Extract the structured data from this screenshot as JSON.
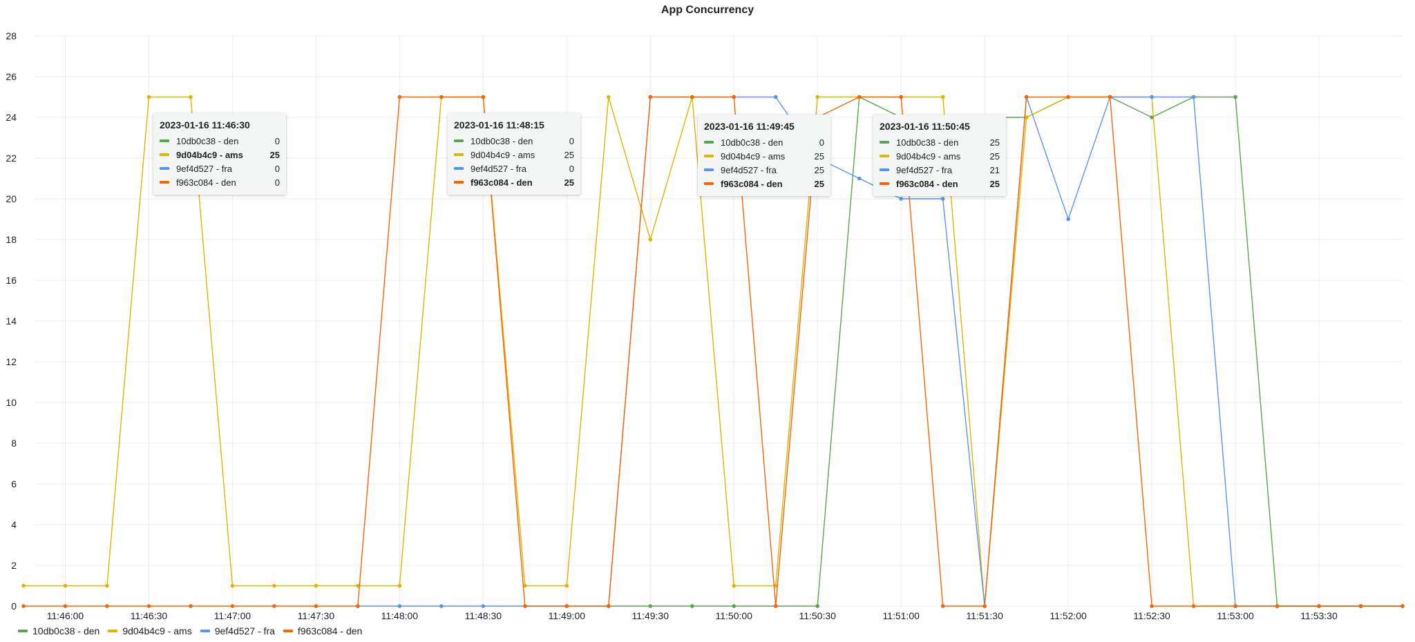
{
  "chart_data": {
    "type": "line",
    "title": "App Concurrency",
    "xlabel": "",
    "ylabel": "",
    "ylim": [
      0,
      28
    ],
    "y_ticks": [
      0,
      2,
      4,
      6,
      8,
      10,
      12,
      14,
      16,
      18,
      20,
      22,
      24,
      26,
      28
    ],
    "x_ticks": [
      "11:46:00",
      "11:46:30",
      "11:47:00",
      "11:47:30",
      "11:48:00",
      "11:48:30",
      "11:49:00",
      "11:49:30",
      "11:50:00",
      "11:50:30",
      "11:51:00",
      "11:51:30",
      "11:52:00",
      "11:52:30",
      "11:53:00",
      "11:53:30"
    ],
    "x": [
      "11:45:45",
      "11:46:00",
      "11:46:15",
      "11:46:30",
      "11:46:45",
      "11:47:00",
      "11:47:15",
      "11:47:30",
      "11:47:45",
      "11:48:00",
      "11:48:15",
      "11:48:30",
      "11:48:45",
      "11:49:00",
      "11:49:15",
      "11:49:30",
      "11:49:45",
      "11:50:00",
      "11:50:15",
      "11:50:30",
      "11:50:45",
      "11:51:00",
      "11:51:15",
      "11:51:30",
      "11:51:45",
      "11:52:00",
      "11:52:15",
      "11:52:30",
      "11:52:45",
      "11:53:00",
      "11:53:15",
      "11:53:30",
      "11:53:45",
      "11:54:00"
    ],
    "series": [
      {
        "name": "10db0c38 - den",
        "color": "#56a64b",
        "values": [
          null,
          null,
          null,
          null,
          null,
          null,
          null,
          null,
          null,
          null,
          null,
          null,
          null,
          null,
          0,
          0,
          0,
          0,
          0,
          0,
          25,
          24,
          24,
          24,
          24,
          25,
          25,
          24,
          25,
          25,
          0,
          0,
          0,
          0
        ]
      },
      {
        "name": "9d04b4c9 - ams",
        "color": "#e0b400",
        "values": [
          1,
          1,
          1,
          25,
          25,
          1,
          1,
          1,
          1,
          1,
          25,
          25,
          1,
          1,
          25,
          18,
          25,
          1,
          1,
          25,
          25,
          25,
          25,
          0,
          24,
          25,
          25,
          25,
          0,
          0,
          0,
          0,
          0,
          0
        ]
      },
      {
        "name": "9ef4d527 - fra",
        "color": "#5794f2",
        "values": [
          null,
          null,
          null,
          null,
          null,
          null,
          null,
          null,
          0,
          0,
          0,
          0,
          0,
          0,
          0,
          25,
          25,
          25,
          25,
          22,
          21,
          20,
          20,
          0,
          25,
          19,
          25,
          25,
          25,
          0,
          0,
          0,
          0,
          0
        ]
      },
      {
        "name": "f963c084 - den",
        "color": "#fa6400",
        "values": [
          0,
          0,
          0,
          0,
          0,
          0,
          0,
          0,
          0,
          25,
          25,
          25,
          0,
          0,
          0,
          25,
          25,
          25,
          0,
          24,
          25,
          25,
          0,
          0,
          25,
          25,
          25,
          0,
          0,
          0,
          0,
          0,
          0,
          0
        ]
      }
    ],
    "legend_placement": "bottom-left",
    "grid": true
  },
  "tooltips": [
    {
      "time": "2023-01-16 11:46:30",
      "rows": [
        {
          "name": "10db0c38 - den",
          "value": "0",
          "color": "#56a64b",
          "bold": false
        },
        {
          "name": "9d04b4c9 - ams",
          "value": "25",
          "color": "#e0b400",
          "bold": true
        },
        {
          "name": "9ef4d527 - fra",
          "value": "0",
          "color": "#5794f2",
          "bold": false
        },
        {
          "name": "f963c084 - den",
          "value": "0",
          "color": "#fa6400",
          "bold": false
        }
      ]
    },
    {
      "time": "2023-01-16 11:48:15",
      "rows": [
        {
          "name": "10db0c38 - den",
          "value": "0",
          "color": "#56a64b",
          "bold": false
        },
        {
          "name": "9d04b4c9 - ams",
          "value": "25",
          "color": "#e0b400",
          "bold": false
        },
        {
          "name": "9ef4d527 - fra",
          "value": "0",
          "color": "#5794f2",
          "bold": false
        },
        {
          "name": "f963c084 - den",
          "value": "25",
          "color": "#fa6400",
          "bold": true
        }
      ]
    },
    {
      "time": "2023-01-16 11:49:45",
      "rows": [
        {
          "name": "10db0c38 - den",
          "value": "0",
          "color": "#56a64b",
          "bold": false
        },
        {
          "name": "9d04b4c9 - ams",
          "value": "25",
          "color": "#e0b400",
          "bold": false
        },
        {
          "name": "9ef4d527 - fra",
          "value": "25",
          "color": "#5794f2",
          "bold": false
        },
        {
          "name": "f963c084 - den",
          "value": "25",
          "color": "#fa6400",
          "bold": true
        }
      ]
    },
    {
      "time": "2023-01-16 11:50:45",
      "rows": [
        {
          "name": "10db0c38 - den",
          "value": "25",
          "color": "#56a64b",
          "bold": false
        },
        {
          "name": "9d04b4c9 - ams",
          "value": "25",
          "color": "#e0b400",
          "bold": false
        },
        {
          "name": "9ef4d527 - fra",
          "value": "21",
          "color": "#5794f2",
          "bold": false
        },
        {
          "name": "f963c084 - den",
          "value": "25",
          "color": "#fa6400",
          "bold": true
        }
      ]
    }
  ]
}
